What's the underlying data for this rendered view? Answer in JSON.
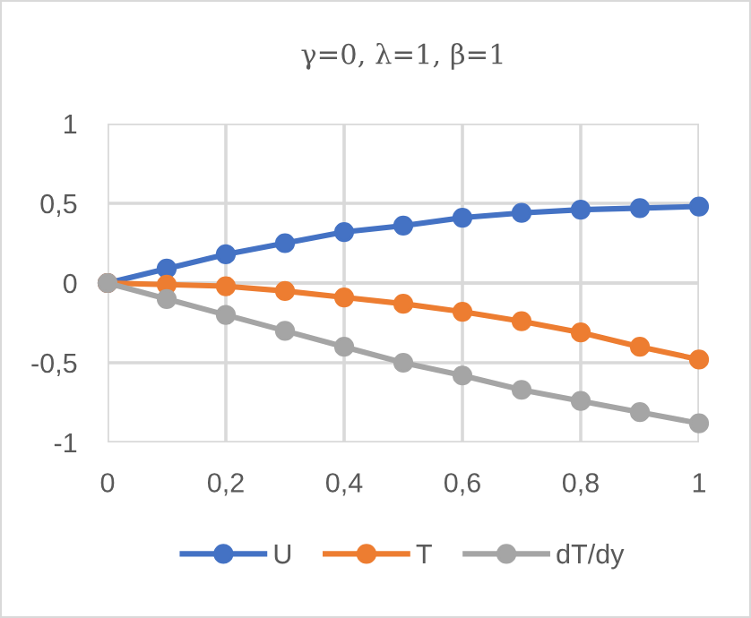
{
  "chart_data": {
    "type": "line",
    "title": "γ=0, λ=1, β=1",
    "x": [
      0,
      0.1,
      0.2,
      0.3,
      0.4,
      0.5,
      0.6,
      0.7,
      0.8,
      0.9,
      1
    ],
    "series": [
      {
        "name": "U",
        "color": "#4472c4",
        "values": [
          0,
          0.09,
          0.18,
          0.25,
          0.32,
          0.36,
          0.41,
          0.44,
          0.46,
          0.47,
          0.48
        ]
      },
      {
        "name": "T",
        "color": "#ed7d31",
        "values": [
          0,
          -0.01,
          -0.02,
          -0.05,
          -0.09,
          -0.13,
          -0.18,
          -0.24,
          -0.31,
          -0.4,
          -0.48
        ]
      },
      {
        "name": "dT/dy",
        "color": "#a5a5a5",
        "values": [
          0,
          -0.1,
          -0.2,
          -0.3,
          -0.4,
          -0.5,
          -0.58,
          -0.67,
          -0.74,
          -0.81,
          -0.88
        ]
      }
    ],
    "xlim": [
      0,
      1
    ],
    "xticks": [
      0,
      {
        "value": 0.2,
        "label": "0,2"
      },
      {
        "value": 0.4,
        "label": "0,4"
      },
      {
        "value": 0.6,
        "label": "0,6"
      },
      {
        "value": 0.8,
        "label": "0,8"
      },
      1
    ],
    "ylim": [
      -1,
      1
    ],
    "yticks": [
      -1,
      {
        "value": -0.5,
        "label": "-0,5"
      },
      0,
      {
        "value": 0.5,
        "label": "0,5"
      },
      1
    ],
    "grid": true,
    "legend": "bottom",
    "marker": "circle",
    "line_style": "solid"
  }
}
